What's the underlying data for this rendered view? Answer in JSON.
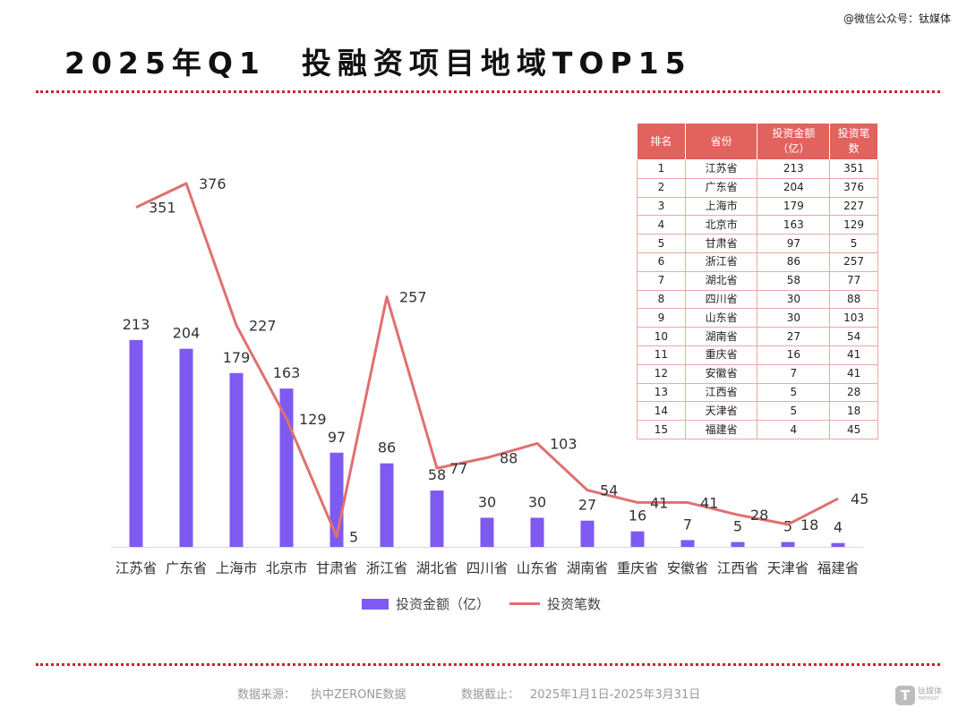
{
  "header": {
    "wechat": "@微信公众号：钛媒体",
    "title": "2025年Q1　投融资项目地域TOP15"
  },
  "colors": {
    "bar": "#7e5af0",
    "line": "#e07070",
    "accent": "#c4262b",
    "table_header": "#e2625e"
  },
  "chart_data": {
    "type": "bar",
    "categories": [
      "江苏省",
      "广东省",
      "上海市",
      "北京市",
      "甘肃省",
      "浙江省",
      "湖北省",
      "四川省",
      "山东省",
      "湖南省",
      "重庆省",
      "安徽省",
      "江西省",
      "天津省",
      "福建省"
    ],
    "series": [
      {
        "name": "投资金额（亿）",
        "type": "bar",
        "values": [
          213,
          204,
          179,
          163,
          97,
          86,
          58,
          30,
          30,
          27,
          16,
          7,
          5,
          5,
          4
        ]
      },
      {
        "name": "投资笔数",
        "type": "line",
        "values": [
          351,
          376,
          227,
          129,
          5,
          257,
          77,
          88,
          103,
          54,
          41,
          41,
          28,
          18,
          45
        ]
      }
    ],
    "title": "2025年Q1　投融资项目地域TOP15",
    "legend": "bottom",
    "grid": false
  },
  "table": {
    "headers": [
      "排名",
      "省份",
      "投资金额\n（亿）",
      "投资笔\n数"
    ],
    "rows": [
      [
        "1",
        "江苏省",
        "213",
        "351"
      ],
      [
        "2",
        "广东省",
        "204",
        "376"
      ],
      [
        "3",
        "上海市",
        "179",
        "227"
      ],
      [
        "4",
        "北京市",
        "163",
        "129"
      ],
      [
        "5",
        "甘肃省",
        "97",
        "5"
      ],
      [
        "6",
        "浙江省",
        "86",
        "257"
      ],
      [
        "7",
        "湖北省",
        "58",
        "77"
      ],
      [
        "8",
        "四川省",
        "30",
        "88"
      ],
      [
        "9",
        "山东省",
        "30",
        "103"
      ],
      [
        "10",
        "湖南省",
        "27",
        "54"
      ],
      [
        "11",
        "重庆省",
        "16",
        "41"
      ],
      [
        "12",
        "安徽省",
        "7",
        "41"
      ],
      [
        "13",
        "江西省",
        "5",
        "28"
      ],
      [
        "14",
        "天津省",
        "5",
        "18"
      ],
      [
        "15",
        "福建省",
        "4",
        "45"
      ]
    ]
  },
  "legend": {
    "bar_label": "投资金额（亿）",
    "line_label": "投资笔数"
  },
  "footer": {
    "source_label": "数据来源：",
    "source_value": "执中ZERONE数据",
    "date_label": "数据截止：",
    "date_value": "2025年1月1日-2025年3月31日",
    "logo_text": "钛媒体",
    "logo_sub": "TMTPOST",
    "logo_mark": "T"
  }
}
